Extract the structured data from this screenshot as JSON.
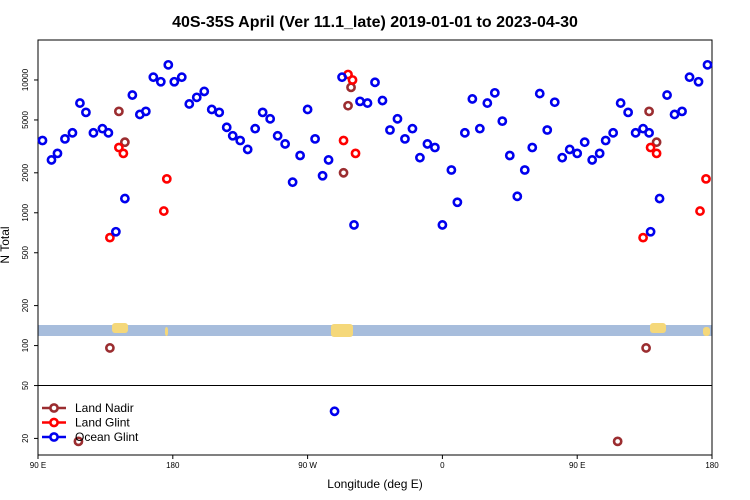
{
  "chart_data": {
    "type": "scatter",
    "title": "40S-35S April (Ver 11.1_late)   2019-01-01 to 2023-04-30",
    "xlabel": "Longitude (deg E)",
    "ylabel": "N Total",
    "y_scale": "log",
    "xlim": [
      90,
      540
    ],
    "ylim": [
      15,
      20000
    ],
    "x_ticks": [
      {
        "value": 90,
        "label": "90 E"
      },
      {
        "value": 180,
        "label": "180"
      },
      {
        "value": 270,
        "label": "90 W"
      },
      {
        "value": 360,
        "label": "0"
      },
      {
        "value": 450,
        "label": "90 E"
      },
      {
        "value": 540,
        "label": "180"
      }
    ],
    "y_ticks": [
      {
        "value": 20,
        "label": "20"
      },
      {
        "value": 50,
        "label": "50"
      },
      {
        "value": 100,
        "label": "100"
      },
      {
        "value": 200,
        "label": "200"
      },
      {
        "value": 500,
        "label": "500"
      },
      {
        "value": 1000,
        "label": "1000"
      },
      {
        "value": 2000,
        "label": "2000"
      },
      {
        "value": 5000,
        "label": "5000"
      },
      {
        "value": 10000,
        "label": "10000"
      }
    ],
    "legend_position": "bottom-left",
    "colors": {
      "land_nadir": "#9b2d30",
      "land_glint": "#ff0000",
      "ocean_glint": "#0000ee",
      "map_ocean": "#a7bddc",
      "map_land": "#f5d87a"
    },
    "series": [
      {
        "name": "Land Nadir",
        "color": "#9b2d30",
        "points": [
          [
            117,
            19
          ],
          [
            138,
            96
          ],
          [
            144,
            5800
          ],
          [
            148,
            3400
          ],
          [
            294,
            2000
          ],
          [
            297,
            6400
          ],
          [
            299,
            8800
          ],
          [
            477,
            19
          ],
          [
            496,
            96
          ],
          [
            498,
            5800
          ],
          [
            503,
            3400
          ]
        ]
      },
      {
        "name": "Land Glint",
        "color": "#ff0000",
        "points": [
          [
            138,
            650
          ],
          [
            144,
            3100
          ],
          [
            147,
            2800
          ],
          [
            174,
            1030
          ],
          [
            176,
            1800
          ],
          [
            294,
            3500
          ],
          [
            297,
            11000
          ],
          [
            300,
            10000
          ],
          [
            302,
            2800
          ],
          [
            494,
            650
          ],
          [
            499,
            3100
          ],
          [
            503,
            2800
          ],
          [
            532,
            1030
          ],
          [
            536,
            1800
          ]
        ]
      },
      {
        "name": "Ocean Glint",
        "color": "#0000ee",
        "points": [
          [
            93,
            3500
          ],
          [
            99,
            2500
          ],
          [
            103,
            2800
          ],
          [
            108,
            3600
          ],
          [
            113,
            4000
          ],
          [
            118,
            6700
          ],
          [
            122,
            5700
          ],
          [
            127,
            4000
          ],
          [
            133,
            4300
          ],
          [
            137,
            4000
          ],
          [
            142,
            720
          ],
          [
            148,
            1280
          ],
          [
            153,
            7700
          ],
          [
            158,
            5500
          ],
          [
            162,
            5800
          ],
          [
            167,
            10500
          ],
          [
            172,
            9700
          ],
          [
            177,
            13000
          ],
          [
            181,
            9700
          ],
          [
            186,
            10500
          ],
          [
            191,
            6600
          ],
          [
            196,
            7400
          ],
          [
            201,
            8200
          ],
          [
            206,
            6000
          ],
          [
            211,
            5700
          ],
          [
            216,
            4400
          ],
          [
            220,
            3800
          ],
          [
            225,
            3500
          ],
          [
            230,
            3000
          ],
          [
            235,
            4300
          ],
          [
            240,
            5700
          ],
          [
            245,
            5100
          ],
          [
            250,
            3800
          ],
          [
            255,
            3300
          ],
          [
            260,
            1700
          ],
          [
            265,
            2700
          ],
          [
            270,
            6000
          ],
          [
            275,
            3600
          ],
          [
            280,
            1900
          ],
          [
            284,
            2500
          ],
          [
            288,
            32
          ],
          [
            293,
            10500
          ],
          [
            301,
            810
          ],
          [
            305,
            6900
          ],
          [
            310,
            6700
          ],
          [
            315,
            9600
          ],
          [
            320,
            7000
          ],
          [
            325,
            4200
          ],
          [
            330,
            5100
          ],
          [
            335,
            3600
          ],
          [
            340,
            4300
          ],
          [
            345,
            2600
          ],
          [
            350,
            3300
          ],
          [
            355,
            3100
          ],
          [
            360,
            810
          ],
          [
            366,
            2100
          ],
          [
            370,
            1200
          ],
          [
            375,
            4000
          ],
          [
            380,
            7200
          ],
          [
            385,
            4300
          ],
          [
            390,
            6700
          ],
          [
            395,
            8000
          ],
          [
            400,
            4900
          ],
          [
            405,
            2700
          ],
          [
            410,
            1330
          ],
          [
            415,
            2100
          ],
          [
            420,
            3100
          ],
          [
            425,
            7900
          ],
          [
            430,
            4200
          ],
          [
            435,
            6800
          ],
          [
            440,
            2600
          ],
          [
            445,
            3000
          ],
          [
            450,
            2800
          ],
          [
            455,
            3400
          ],
          [
            460,
            2500
          ],
          [
            465,
            2800
          ],
          [
            469,
            3500
          ],
          [
            474,
            4000
          ],
          [
            479,
            6700
          ],
          [
            484,
            5700
          ],
          [
            489,
            4000
          ],
          [
            494,
            4300
          ],
          [
            499,
            720
          ],
          [
            498,
            4000
          ],
          [
            505,
            1280
          ],
          [
            510,
            7700
          ],
          [
            515,
            5500
          ],
          [
            520,
            5800
          ],
          [
            525,
            10500
          ],
          [
            531,
            9700
          ],
          [
            537,
            13000
          ]
        ]
      }
    ]
  }
}
